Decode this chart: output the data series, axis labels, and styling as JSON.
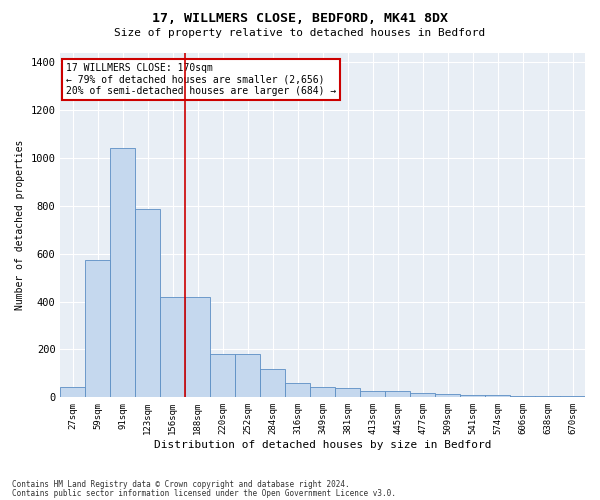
{
  "title_line1": "17, WILLMERS CLOSE, BEDFORD, MK41 8DX",
  "title_line2": "Size of property relative to detached houses in Bedford",
  "xlabel": "Distribution of detached houses by size in Bedford",
  "ylabel": "Number of detached properties",
  "categories": [
    "27sqm",
    "59sqm",
    "91sqm",
    "123sqm",
    "156sqm",
    "188sqm",
    "220sqm",
    "252sqm",
    "284sqm",
    "316sqm",
    "349sqm",
    "381sqm",
    "413sqm",
    "445sqm",
    "477sqm",
    "509sqm",
    "541sqm",
    "574sqm",
    "606sqm",
    "638sqm",
    "670sqm"
  ],
  "values": [
    45,
    575,
    1040,
    785,
    420,
    420,
    180,
    180,
    120,
    60,
    45,
    40,
    25,
    25,
    20,
    15,
    10,
    10,
    5,
    5,
    5
  ],
  "bar_color": "#c5d8ee",
  "bar_edge_color": "#5b8ec4",
  "vline_x": 4.5,
  "vline_color": "#cc0000",
  "annotation_text": "17 WILLMERS CLOSE: 170sqm\n← 79% of detached houses are smaller (2,656)\n20% of semi-detached houses are larger (684) →",
  "annotation_box_color": "#ffffff",
  "annotation_box_edge_color": "#cc0000",
  "ylim": [
    0,
    1440
  ],
  "yticks": [
    0,
    200,
    400,
    600,
    800,
    1000,
    1200,
    1400
  ],
  "background_color": "#e8eef5",
  "footnote_line1": "Contains HM Land Registry data © Crown copyright and database right 2024.",
  "footnote_line2": "Contains public sector information licensed under the Open Government Licence v3.0."
}
